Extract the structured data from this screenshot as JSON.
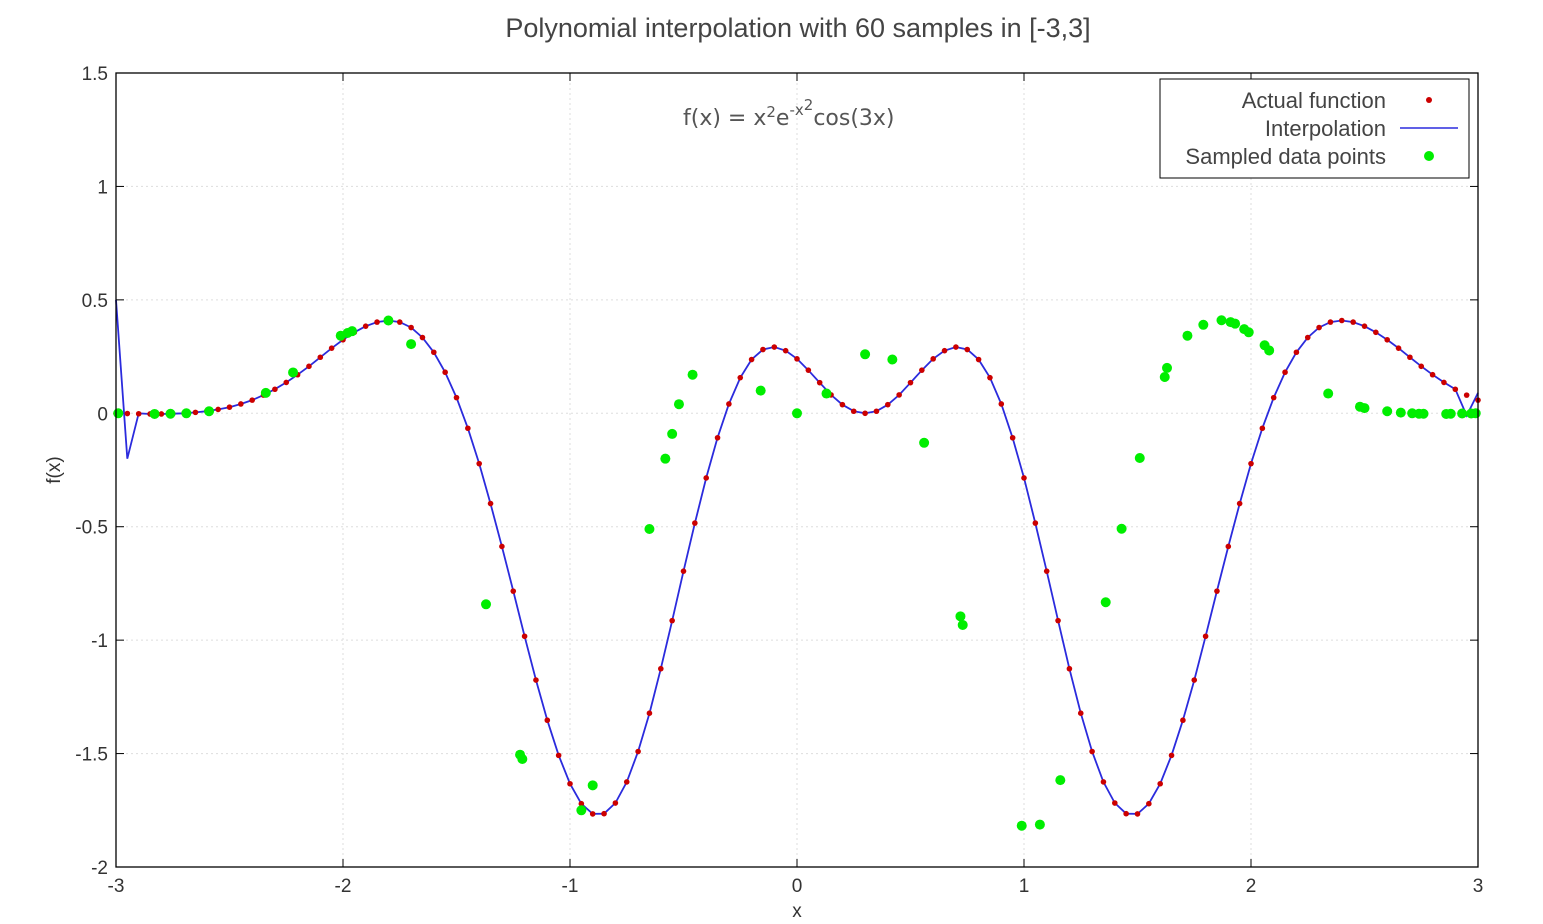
{
  "chart_data": {
    "type": "line",
    "title": "Polynomial interpolation with 60 samples in [-3,3]",
    "xlabel": "x",
    "ylabel": "f(x)",
    "xlim": [
      -3,
      3
    ],
    "ylim": [
      -2,
      1.5
    ],
    "x_ticks": [
      -3,
      -2,
      -1,
      0,
      1,
      2,
      3
    ],
    "y_ticks": [
      -2,
      -1.5,
      -1,
      -0.5,
      0,
      0.5,
      1,
      1.5
    ],
    "x_tick_labels": [
      "-3",
      "-2",
      "-1",
      "0",
      "1",
      "2",
      "3"
    ],
    "y_tick_labels": [
      "-2",
      "-1.5",
      "-1",
      "-0.5",
      "0",
      "0.5",
      "1",
      "1.5"
    ],
    "grid": true,
    "legend_position": "top-right",
    "annotation": {
      "base": "f(x) = x",
      "sup1": "2",
      "mid": "e",
      "sup2": "-x",
      "sup3": "2",
      "tail": "cos(3x)"
    },
    "series": [
      {
        "name": "Actual function",
        "style": "points",
        "color": "#cc0000",
        "x": [
          -3.0,
          -2.95,
          -2.9,
          -2.85,
          -2.8,
          -2.75,
          -2.7,
          -2.65,
          -2.6,
          -2.55,
          -2.5,
          -2.45,
          -2.4,
          -2.35,
          -2.3,
          -2.25,
          -2.2,
          -2.15,
          -2.1,
          -2.05,
          -2.0,
          -1.95,
          -1.9,
          -1.85,
          -1.8,
          -1.75,
          -1.7,
          -1.65,
          -1.6,
          -1.55,
          -1.5,
          -1.45,
          -1.4,
          -1.35,
          -1.3,
          -1.25,
          -1.2,
          -1.15,
          -1.1,
          -1.05,
          -1.0,
          -0.95,
          -0.9,
          -0.85,
          -0.8,
          -0.75,
          -0.7,
          -0.65,
          -0.6,
          -0.55,
          -0.5,
          -0.45,
          -0.4,
          -0.35,
          -0.3,
          -0.25,
          -0.2,
          -0.15,
          -0.1,
          -0.05,
          0.0,
          0.05,
          0.1,
          0.15,
          0.2,
          0.25,
          0.3,
          0.35,
          0.4,
          0.45,
          0.5,
          0.55,
          0.6,
          0.65,
          0.7,
          0.75,
          0.8,
          0.85,
          0.9,
          0.95,
          1.0,
          1.05,
          1.1,
          1.15,
          1.2,
          1.25,
          1.3,
          1.35,
          1.4,
          1.45,
          1.5,
          1.55,
          1.6,
          1.65,
          1.7,
          1.75,
          1.8,
          1.85,
          1.9,
          1.95,
          2.0,
          2.05,
          2.1,
          2.15,
          2.2,
          2.25,
          2.3,
          2.35,
          2.4,
          2.45,
          2.5,
          2.55,
          2.6,
          2.65,
          2.7,
          2.75,
          2.8,
          2.85,
          2.9,
          2.95,
          3.0
        ],
        "y": [
          -0.001,
          -0.001,
          -0.002,
          -0.003,
          -0.003,
          -0.002,
          0.0,
          0.004,
          0.009,
          0.017,
          0.027,
          0.041,
          0.058,
          0.08,
          0.106,
          0.136,
          0.17,
          0.207,
          0.247,
          0.287,
          0.324,
          0.357,
          0.384,
          0.402,
          0.409,
          0.402,
          0.378,
          0.334,
          0.269,
          0.181,
          0.069,
          -0.066,
          -0.222,
          -0.398,
          -0.587,
          -0.784,
          -0.983,
          -1.176,
          -1.353,
          -1.508,
          -1.633,
          -1.721,
          -1.766,
          -1.765,
          -1.718,
          -1.625,
          -1.491,
          -1.322,
          -1.126,
          -0.914,
          -0.696,
          -0.484,
          -0.285,
          -0.108,
          0.041,
          0.157,
          0.237,
          0.281,
          0.292,
          0.276,
          0.24,
          0.19,
          0.135,
          0.081,
          0.038,
          0.009,
          0.0,
          0.009,
          0.038,
          0.081,
          0.135,
          0.19,
          0.24,
          0.276,
          0.292,
          0.281,
          0.237,
          0.157,
          0.041,
          -0.108,
          -0.285,
          -0.484,
          -0.696,
          -0.914,
          -1.126,
          -1.322,
          -1.491,
          -1.625,
          -1.718,
          -1.765,
          -1.766,
          -1.721,
          -1.633,
          -1.508,
          -1.353,
          -1.176,
          -0.983,
          -0.784,
          -0.587,
          -0.398,
          -0.222,
          -0.066,
          0.069,
          0.181,
          0.269,
          0.334,
          0.378,
          0.402,
          0.409,
          0.402,
          0.384,
          0.357,
          0.324,
          0.287,
          0.247,
          0.207,
          0.17,
          0.136,
          0.106,
          0.08,
          0.058
        ]
      },
      {
        "name": "Interpolation",
        "style": "line",
        "color": "#2b2bdd",
        "edge_x": [
          -3.0,
          -2.95,
          -2.9,
          2.95,
          3.0
        ],
        "edge_y": [
          0.5,
          -0.2,
          0.0,
          -0.01,
          0.09
        ]
      },
      {
        "name": "Sampled data points",
        "style": "points",
        "color": "#00ee00",
        "x": [
          -2.99,
          -2.83,
          -2.76,
          -2.69,
          -2.59,
          -2.34,
          -2.22,
          -2.01,
          -1.98,
          -1.96,
          -1.8,
          -1.7,
          -1.37,
          -1.22,
          -1.21,
          -0.95,
          -0.9,
          -0.65,
          -0.58,
          -0.55,
          -0.52,
          -0.46,
          -0.16,
          0.0,
          0.13,
          0.3,
          0.42,
          0.56,
          0.72,
          0.73,
          0.99,
          1.07,
          1.16,
          1.36,
          1.43,
          1.51,
          1.62,
          1.63,
          1.72,
          1.79,
          1.87,
          1.91,
          1.93,
          1.97,
          1.99,
          2.06,
          2.08,
          2.34,
          2.48,
          2.5,
          2.6,
          2.66,
          2.71,
          2.74,
          2.76,
          2.86,
          2.88,
          2.93,
          2.97,
          2.99
        ],
        "y": [
          0.0,
          -0.003,
          -0.002,
          0.0,
          0.009,
          0.09,
          0.18,
          0.342,
          0.354,
          0.362,
          0.409,
          0.305,
          -0.842,
          -1.505,
          -1.524,
          -1.75,
          -1.64,
          -0.51,
          -0.2,
          -0.091,
          0.04,
          0.17,
          0.1,
          0.0,
          0.087,
          0.26,
          0.237,
          -0.13,
          -0.895,
          -0.933,
          -1.818,
          -1.813,
          -1.617,
          -0.833,
          -0.509,
          -0.197,
          0.16,
          0.2,
          0.342,
          0.39,
          0.41,
          0.402,
          0.395,
          0.371,
          0.357,
          0.3,
          0.277,
          0.087,
          0.029,
          0.023,
          0.009,
          0.003,
          0.0,
          -0.002,
          -0.002,
          -0.003,
          -0.002,
          -0.001,
          -0.001,
          0.0
        ]
      }
    ]
  }
}
